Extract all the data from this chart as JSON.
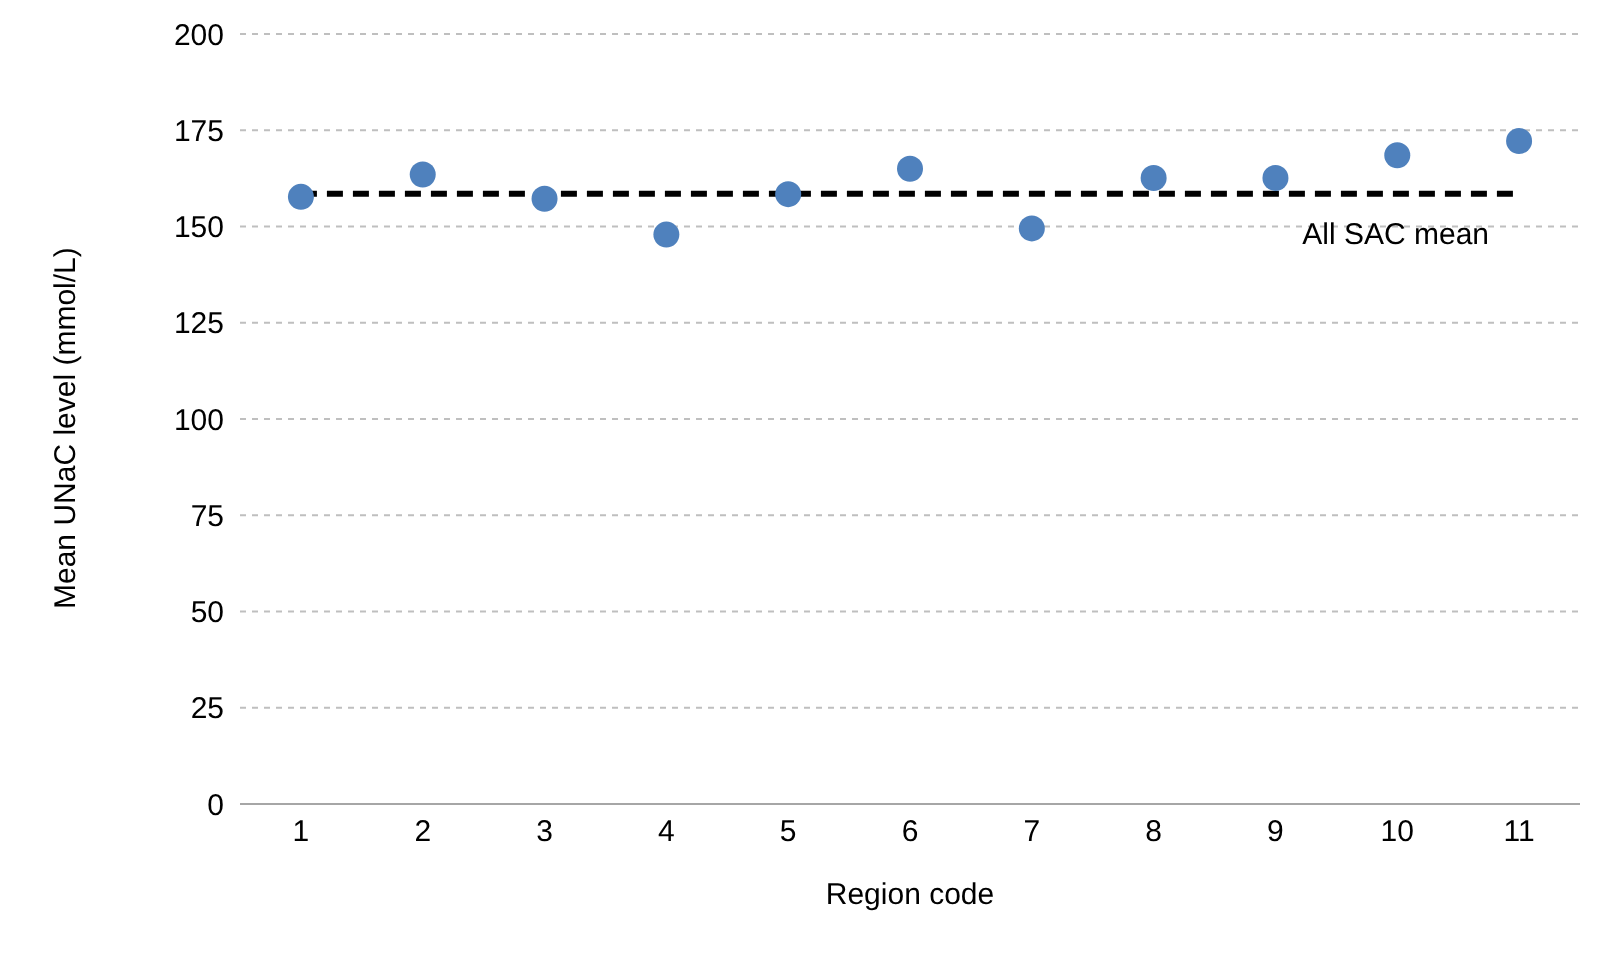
{
  "chart_data": {
    "type": "scatter",
    "xlabel": "Region code",
    "ylabel": "Mean UNaC level (mmol/L)",
    "categories": [
      "1",
      "2",
      "3",
      "4",
      "5",
      "6",
      "7",
      "8",
      "9",
      "10",
      "11"
    ],
    "series": [
      {
        "color": "#4f81bd",
        "values": [
          157.7,
          163.5,
          157.2,
          147.9,
          158.4,
          165,
          149.5,
          162.6,
          162.6,
          168.5,
          172.2
        ]
      }
    ],
    "ylim": [
      0,
      200
    ],
    "yticks": [
      0,
      25,
      50,
      75,
      100,
      125,
      150,
      175,
      200
    ],
    "grid": "y",
    "marker": "circle",
    "legend": false,
    "ref_lines": [
      {
        "axis": "y",
        "value": 158.5,
        "label": "All SAC mean",
        "color": "#000000",
        "line_style": "dashed"
      }
    ]
  }
}
